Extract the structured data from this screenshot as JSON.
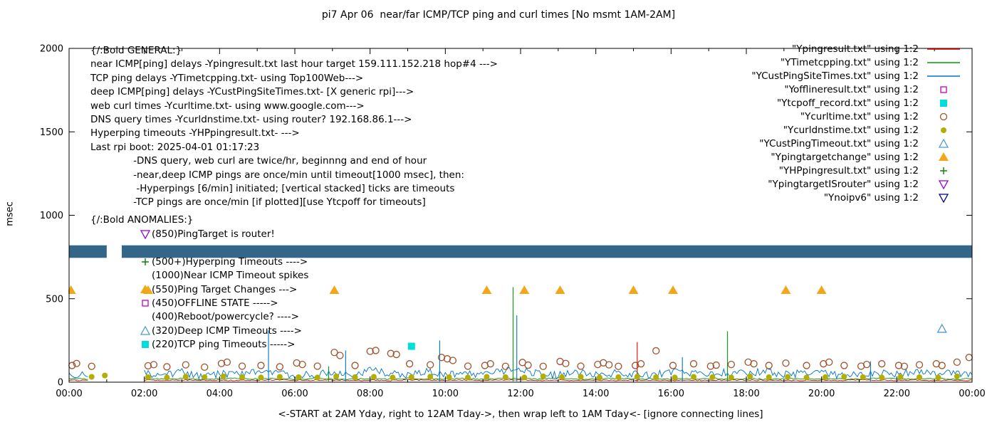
{
  "title": "pi7 Apr 06  near/far ICMP/TCP ping and curl times [No msmt 1AM-2AM]",
  "axes": {
    "y_label": "msec",
    "x_label": "<-START at 2AM Yday, right to 12AM Tday->, then wrap left to 1AM Tday<- [ignore connecting lines]",
    "y_range": [
      0,
      2000
    ],
    "y_ticks": [
      0,
      500,
      1000,
      1500,
      2000
    ],
    "x_range_hours": [
      0,
      24
    ],
    "x_major_step_hours": 2,
    "x_minor_step_hours": 1,
    "x_tick_labels": [
      "00:00",
      "02:00",
      "04:00",
      "06:00",
      "08:00",
      "10:00",
      "12:00",
      "14:00",
      "16:00",
      "18:00",
      "20:00",
      "22:00",
      "00:00"
    ],
    "grid": "off"
  },
  "legend": [
    {
      "label": "\"Ypingresult.txt\" using 1:2",
      "style": "line",
      "color": "#dd0000"
    },
    {
      "label": "\"YTimetcpping.txt\" using 1:2",
      "style": "line",
      "color": "#00a000"
    },
    {
      "label": "\"YCustPingSiteTimes.txt\" using 1:2",
      "style": "line",
      "color": "#0072c6"
    },
    {
      "label": "\"Yofflineresult.txt\" using 1:2",
      "style": "square-open",
      "color": "#c400c4"
    },
    {
      "label": "\"Ytcpoff_record.txt\" using 1:2",
      "style": "square-filled",
      "color": "#00dddd"
    },
    {
      "label": "\"Ycurltime.txt\" using 1:2",
      "style": "circle-open",
      "color": "#a0522d"
    },
    {
      "label": "\"Ycurldnstime.txt\" using 1:2",
      "style": "circle-filled",
      "color": "#b1af00"
    },
    {
      "label": "\"YCustPingTimeout.txt\" using 1:2",
      "style": "triangle-up-open",
      "color": "#4e9ad2"
    },
    {
      "label": "\"Ypingtargetchange\" using 1:2",
      "style": "triangle-up-filled",
      "color": "#f2a71b"
    },
    {
      "label": "\"YHPpingresult.txt\" using 1:2",
      "style": "plus",
      "color": "#008000"
    },
    {
      "label": "\"YpingtargetISrouter\" using 1:2",
      "style": "triangle-down-open",
      "color": "#9400d3"
    },
    {
      "label": "\"Ynoipv6\" using 1:2",
      "style": "triangle-down-open",
      "color": "#000080"
    }
  ],
  "info_block": {
    "heading": "{/:Bold GENERAL:}",
    "lines": [
      "near ICMP[ping] delays -Ypingresult.txt last hour target 159.111.152.218 hop#4 --->",
      "TCP ping delays -YTimetcpping.txt- using Top100Web--->",
      "deep ICMP[ping] delays -YCustPingSiteTimes.txt- [X generic rpi]--->",
      "web curl times -Ycurltime.txt- using www.google.com--->",
      "DNS query times -Ycurldnstime.txt- using router? 192.168.86.1--->",
      "Hyperping timeouts -YHPpingresult.txt- --->",
      "Last rpi boot: 2025-04-01 01:17:23",
      "              -DNS query, web curl are twice/hr, beginnng and end of hour",
      "              -near,deep ICMP pings are once/min until timeout[1000 msec], then:",
      "               -Hyperpings [6/min] initiated; [vertical stacked] ticks are timeouts",
      "              -TCP pings are once/min [if plotted][use Ytcpoff for timeouts]"
    ]
  },
  "anomalies_block": {
    "heading": "{/:Bold ANOMALIES:}",
    "items": [
      {
        "marker": "triangle-down-open",
        "color": "#9400d3",
        "text": "(850)PingTarget is router!"
      },
      {
        "marker": "",
        "color": "",
        "text": ""
      },
      {
        "marker": "plus",
        "color": "#008000",
        "text": "(500+)Hyperping Timeouts ---->"
      },
      {
        "marker": "",
        "color": "",
        "text": "(1000)Near ICMP Timeout spikes"
      },
      {
        "marker": "triangle-up-filled",
        "color": "#f2a71b",
        "text": "(550)Ping Target Changes --->"
      },
      {
        "marker": "square-open",
        "color": "#c400c4",
        "text": "(450)OFFLINE STATE ----->"
      },
      {
        "marker": "",
        "color": "",
        "text": "(400)Reboot/powercycle? ---->"
      },
      {
        "marker": "triangle-up-open",
        "color": "#4e9ad2",
        "text": "(320)Deep ICMP Timeouts ---->"
      },
      {
        "marker": "square-filled",
        "color": "#00dddd",
        "text": "(220)TCP ping Timeouts ----->"
      }
    ]
  },
  "chart_data": {
    "type": "line",
    "title": "pi7 Apr 06  near/far ICMP/TCP ping and curl times [No msmt 1AM-2AM]",
    "xlabel": "<-START at 2AM Yday, right to 12AM Tday->, then wrap left to 1AM Tday<- [ignore connecting lines]",
    "ylabel": "msec",
    "x_unit": "hours",
    "x_range": [
      0,
      24
    ],
    "ylim": [
      0,
      2000
    ],
    "no_measurement_window_hours": [
      1,
      2
    ],
    "series": [
      {
        "name": "Ypingresult.txt",
        "style": "line",
        "color": "#dd0000",
        "x_start": 0,
        "x_step": 0.5,
        "noise": 3,
        "values": [
          12,
          11,
          null,
          null,
          12,
          10,
          13,
          11,
          12,
          10,
          12,
          13,
          11,
          12,
          14,
          11,
          12,
          10,
          13,
          12,
          11,
          12,
          10,
          13,
          12,
          11,
          12,
          10,
          12,
          11,
          13,
          12,
          10,
          12,
          11,
          12,
          13,
          11,
          12,
          10,
          12,
          11,
          13,
          12,
          11,
          12,
          10,
          12,
          11
        ],
        "spikes": [
          [
            15.1,
            240
          ]
        ]
      },
      {
        "name": "YTimetcpping.txt",
        "style": "line",
        "color": "#00a000",
        "x_start": 0,
        "x_step": 0.5,
        "noise": 4,
        "values": [
          20,
          18,
          null,
          null,
          22,
          19,
          21,
          18,
          20,
          23,
          19,
          21,
          18,
          22,
          20,
          19,
          21,
          18,
          23,
          20,
          19,
          22,
          18,
          21,
          20,
          19,
          23,
          18,
          20,
          22,
          19,
          21,
          18,
          20,
          23,
          19,
          21,
          18,
          20,
          22,
          19,
          21,
          18,
          23,
          20,
          19,
          21,
          18,
          20
        ],
        "spikes": [
          [
            6.9,
            95
          ],
          [
            11.8,
            570
          ],
          [
            17.5,
            305
          ]
        ]
      },
      {
        "name": "YCustPingSiteTimes.txt",
        "style": "line",
        "color": "#0072c6",
        "x_start": 0,
        "x_step": 0.5,
        "noise": 22,
        "values": [
          45,
          50,
          null,
          null,
          55,
          40,
          60,
          35,
          50,
          45,
          65,
          55,
          40,
          50,
          60,
          45,
          70,
          55,
          40,
          60,
          50,
          45,
          55,
          65,
          75,
          50,
          40,
          60,
          45,
          55,
          50,
          40,
          65,
          55,
          45,
          60,
          50,
          70,
          45,
          55,
          60,
          40,
          50,
          55,
          45,
          65,
          50,
          55,
          45
        ],
        "spikes": [
          [
            5.3,
            310
          ],
          [
            7.35,
            190
          ],
          [
            9.85,
            250
          ],
          [
            11.9,
            400
          ],
          [
            16.3,
            150
          ],
          [
            21.3,
            125
          ]
        ]
      },
      {
        "name": "Yofflineresult.txt",
        "style": "square-open",
        "color": "#c400c4",
        "points": []
      },
      {
        "name": "Ytcpoff_record.txt",
        "style": "square-filled",
        "color": "#00dddd",
        "points": [
          [
            9.1,
            215
          ]
        ]
      },
      {
        "name": "Ycurltime.txt",
        "style": "circle-open",
        "color": "#a0522d",
        "points": [
          [
            0.08,
            100
          ],
          [
            0.2,
            112
          ],
          [
            0.6,
            95
          ],
          [
            2.1,
            98
          ],
          [
            2.25,
            105
          ],
          [
            2.6,
            92
          ],
          [
            3.1,
            104
          ],
          [
            3.6,
            90
          ],
          [
            4.05,
            112
          ],
          [
            4.2,
            120
          ],
          [
            4.6,
            96
          ],
          [
            5.1,
            100
          ],
          [
            5.6,
            92
          ],
          [
            6.05,
            115
          ],
          [
            6.2,
            106
          ],
          [
            6.6,
            96
          ],
          [
            7.05,
            178
          ],
          [
            7.2,
            160
          ],
          [
            7.6,
            100
          ],
          [
            8.0,
            185
          ],
          [
            8.15,
            190
          ],
          [
            8.55,
            172
          ],
          [
            8.7,
            166
          ],
          [
            9.05,
            110
          ],
          [
            9.6,
            104
          ],
          [
            9.9,
            148
          ],
          [
            10.05,
            140
          ],
          [
            10.2,
            130
          ],
          [
            10.6,
            96
          ],
          [
            11.05,
            100
          ],
          [
            11.2,
            110
          ],
          [
            11.6,
            95
          ],
          [
            12.05,
            118
          ],
          [
            12.2,
            102
          ],
          [
            12.6,
            95
          ],
          [
            13.05,
            124
          ],
          [
            13.2,
            112
          ],
          [
            13.6,
            96
          ],
          [
            14.05,
            106
          ],
          [
            14.2,
            116
          ],
          [
            14.35,
            104
          ],
          [
            14.6,
            95
          ],
          [
            15.05,
            100
          ],
          [
            15.2,
            110
          ],
          [
            15.6,
            188
          ],
          [
            16.05,
            100
          ],
          [
            16.6,
            110
          ],
          [
            17.05,
            96
          ],
          [
            17.2,
            102
          ],
          [
            17.6,
            106
          ],
          [
            18.05,
            120
          ],
          [
            18.2,
            110
          ],
          [
            18.6,
            100
          ],
          [
            19.05,
            114
          ],
          [
            19.6,
            100
          ],
          [
            20.05,
            110
          ],
          [
            20.2,
            120
          ],
          [
            20.6,
            100
          ],
          [
            21.05,
            96
          ],
          [
            21.2,
            106
          ],
          [
            21.6,
            110
          ],
          [
            22.05,
            100
          ],
          [
            22.2,
            95
          ],
          [
            22.6,
            104
          ],
          [
            23.05,
            110
          ],
          [
            23.2,
            100
          ],
          [
            23.6,
            120
          ],
          [
            23.92,
            148
          ]
        ]
      },
      {
        "name": "Ycurldnstime.txt",
        "style": "circle-filled",
        "color": "#b1af00",
        "points": [
          [
            0.6,
            32
          ],
          [
            0.95,
            40
          ],
          [
            2.1,
            30
          ],
          [
            2.6,
            28
          ],
          [
            3.1,
            33
          ],
          [
            3.6,
            30
          ],
          [
            4.1,
            35
          ],
          [
            4.6,
            30
          ],
          [
            5.1,
            28
          ],
          [
            5.6,
            32
          ],
          [
            6.1,
            30
          ],
          [
            6.6,
            28
          ],
          [
            7.1,
            35
          ],
          [
            7.6,
            30
          ],
          [
            8.1,
            32
          ],
          [
            8.6,
            28
          ],
          [
            9.1,
            30
          ],
          [
            9.6,
            33
          ],
          [
            10.1,
            30
          ],
          [
            10.6,
            28
          ],
          [
            11.1,
            32
          ],
          [
            11.6,
            30
          ],
          [
            12.1,
            28
          ],
          [
            12.6,
            35
          ],
          [
            13.1,
            30
          ],
          [
            13.6,
            32
          ],
          [
            14.1,
            28
          ],
          [
            14.6,
            30
          ],
          [
            15.1,
            33
          ],
          [
            15.6,
            30
          ],
          [
            16.1,
            28
          ],
          [
            16.6,
            32
          ],
          [
            17.1,
            30
          ],
          [
            17.6,
            28
          ],
          [
            18.1,
            35
          ],
          [
            18.6,
            30
          ],
          [
            19.1,
            32
          ],
          [
            19.6,
            28
          ],
          [
            20.1,
            30
          ],
          [
            20.6,
            33
          ],
          [
            21.1,
            30
          ],
          [
            21.6,
            28
          ],
          [
            22.1,
            32
          ],
          [
            22.6,
            30
          ],
          [
            23.1,
            28
          ],
          [
            23.6,
            35
          ]
        ]
      },
      {
        "name": "YCustPingTimeout.txt",
        "style": "triangle-up-open",
        "color": "#4e9ad2",
        "points": [
          [
            23.2,
            320
          ]
        ]
      },
      {
        "name": "Ypingtargetchange",
        "style": "triangle-up-filled",
        "color": "#f2a71b",
        "points": [
          [
            0.05,
            550
          ],
          [
            2.1,
            550
          ],
          [
            7.05,
            550
          ],
          [
            11.1,
            550
          ],
          [
            12.1,
            550
          ],
          [
            13.05,
            550
          ],
          [
            15.0,
            550
          ],
          [
            16.05,
            550
          ],
          [
            19.05,
            550
          ],
          [
            20.0,
            550
          ]
        ]
      },
      {
        "name": "YHPpingresult.txt",
        "style": "plus",
        "color": "#008000",
        "points": []
      },
      {
        "name": "YpingtargetISrouter",
        "style": "triangle-down-open",
        "color": "#9400d3",
        "points": []
      },
      {
        "name": "Ynoipv6",
        "style": "band",
        "color": "#336688",
        "band": {
          "y_min": 745,
          "y_max": 820,
          "gaps": [
            [
              1.0,
              1.4
            ]
          ]
        }
      }
    ]
  }
}
